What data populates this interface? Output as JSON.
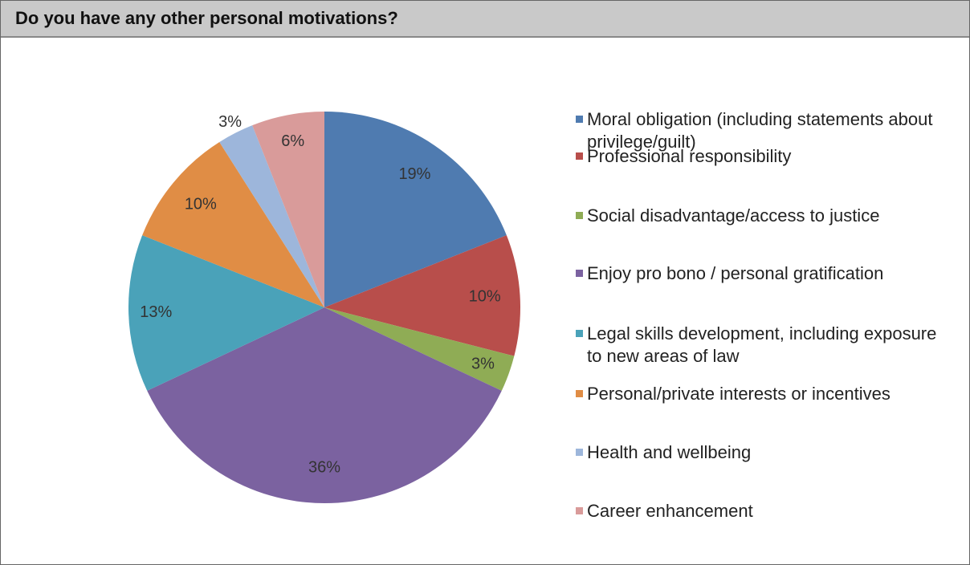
{
  "chart_data": {
    "type": "pie",
    "title": "Do you have any other personal motivations?",
    "categories": [
      "Moral obligation (including statements about privilege/guilt)",
      "Professional responsibility",
      "Social disadvantage/access to justice",
      "Enjoy pro bono / personal gratification",
      "Legal skills development, including exposure to new areas of law",
      "Personal/private interests or incentives",
      "Health and wellbeing",
      "Career enhancement"
    ],
    "values": [
      19,
      10,
      3,
      36,
      13,
      10,
      3,
      6
    ],
    "value_labels": [
      "19%",
      "10%",
      "3%",
      "36%",
      "13%",
      "10%",
      "3%",
      "6%"
    ],
    "colors": [
      "#4f7bb0",
      "#b84e4b",
      "#8fac55",
      "#7b62a0",
      "#4aa2b9",
      "#e08d45",
      "#9db6db",
      "#d99b9a"
    ],
    "legend": "right"
  }
}
